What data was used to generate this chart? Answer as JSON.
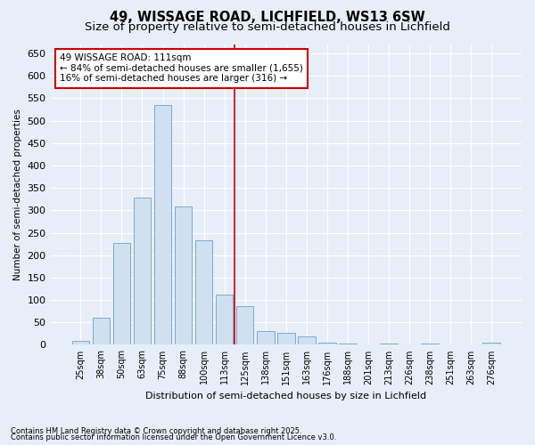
{
  "title": "49, WISSAGE ROAD, LICHFIELD, WS13 6SW",
  "subtitle": "Size of property relative to semi-detached houses in Lichfield",
  "xlabel": "Distribution of semi-detached houses by size in Lichfield",
  "ylabel": "Number of semi-detached properties",
  "categories": [
    "25sqm",
    "38sqm",
    "50sqm",
    "63sqm",
    "75sqm",
    "88sqm",
    "100sqm",
    "113sqm",
    "125sqm",
    "138sqm",
    "151sqm",
    "163sqm",
    "176sqm",
    "188sqm",
    "201sqm",
    "213sqm",
    "226sqm",
    "238sqm",
    "251sqm",
    "263sqm",
    "276sqm"
  ],
  "values": [
    8,
    60,
    228,
    328,
    535,
    308,
    233,
    113,
    87,
    30,
    27,
    18,
    5,
    3,
    1,
    2,
    0,
    3,
    0,
    0,
    4
  ],
  "bar_color": "#d0e0f0",
  "bar_edge_color": "#7aaad0",
  "vline_x": 7.5,
  "vline_color": "#cc0000",
  "annotation_title": "49 WISSAGE ROAD: 111sqm",
  "annotation_line1": "← 84% of semi-detached houses are smaller (1,655)",
  "annotation_line2": "16% of semi-detached houses are larger (316) →",
  "annotation_box_color": "#ffffff",
  "annotation_box_edge": "#cc0000",
  "ylim": [
    0,
    670
  ],
  "yticks": [
    0,
    50,
    100,
    150,
    200,
    250,
    300,
    350,
    400,
    450,
    500,
    550,
    600,
    650
  ],
  "footnote1": "Contains HM Land Registry data © Crown copyright and database right 2025.",
  "footnote2": "Contains public sector information licensed under the Open Government Licence v3.0.",
  "bg_color": "#e8eef8",
  "plot_bg_color": "#e8eef8",
  "title_fontsize": 10.5,
  "subtitle_fontsize": 9.5
}
